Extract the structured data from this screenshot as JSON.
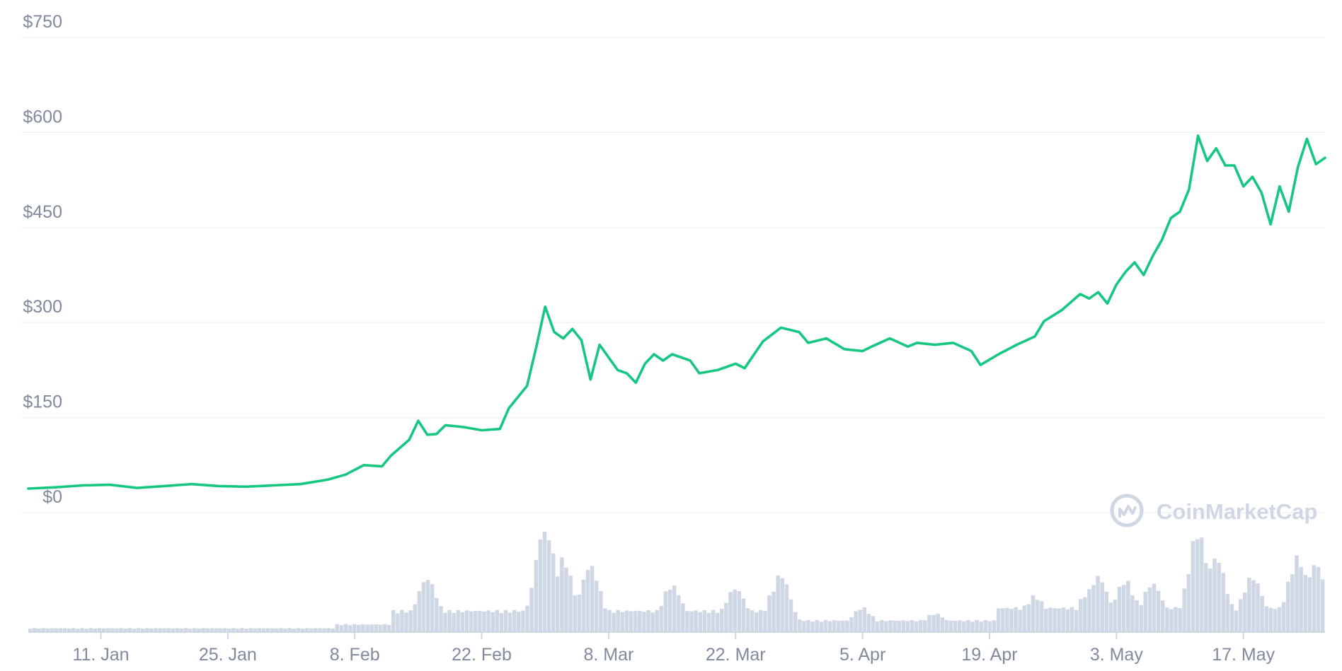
{
  "chart_data": {
    "type": "line",
    "title": "",
    "xlabel": "",
    "ylabel": "",
    "x_range": [
      "2021-01-03",
      "2021-05-26"
    ],
    "ylim": [
      0,
      750
    ],
    "y_ticks": [
      0,
      150,
      300,
      450,
      600,
      750
    ],
    "y_tick_labels": [
      "$0",
      "$150",
      "$300",
      "$450",
      "$600",
      "$750"
    ],
    "x_ticks": [
      "2021-01-11",
      "2021-01-25",
      "2021-02-08",
      "2021-02-22",
      "2021-03-08",
      "2021-03-22",
      "2021-04-05",
      "2021-04-19",
      "2021-05-03",
      "2021-05-17"
    ],
    "x_tick_labels": [
      "11. Jan",
      "25. Jan",
      "8. Feb",
      "22. Feb",
      "8. Mar",
      "22. Mar",
      "5. Apr",
      "19. Apr",
      "3. May",
      "17. May"
    ],
    "grid": "horizontal",
    "legend": "none",
    "series": [
      {
        "color": "#16c784",
        "points": [
          [
            "2021-01-03",
            38
          ],
          [
            "2021-01-06",
            40
          ],
          [
            "2021-01-09",
            43
          ],
          [
            "2021-01-12",
            44
          ],
          [
            "2021-01-15",
            39
          ],
          [
            "2021-01-18",
            42
          ],
          [
            "2021-01-21",
            45
          ],
          [
            "2021-01-24",
            42
          ],
          [
            "2021-01-27",
            41
          ],
          [
            "2021-01-30",
            43
          ],
          [
            "2021-02-02",
            45
          ],
          [
            "2021-02-05",
            52
          ],
          [
            "2021-02-07",
            60
          ],
          [
            "2021-02-09",
            75
          ],
          [
            "2021-02-11",
            73
          ],
          [
            "2021-02-12",
            90
          ],
          [
            "2021-02-14",
            115
          ],
          [
            "2021-02-15",
            145
          ],
          [
            "2021-02-16",
            123
          ],
          [
            "2021-02-17",
            124
          ],
          [
            "2021-02-18",
            138
          ],
          [
            "2021-02-20",
            135
          ],
          [
            "2021-02-22",
            130
          ],
          [
            "2021-02-24",
            132
          ],
          [
            "2021-02-25",
            165
          ],
          [
            "2021-02-27",
            200
          ],
          [
            "2021-02-28",
            260
          ],
          [
            "2021-03-01",
            325
          ],
          [
            "2021-03-02",
            285
          ],
          [
            "2021-03-03",
            275
          ],
          [
            "2021-03-04",
            290
          ],
          [
            "2021-03-05",
            272
          ],
          [
            "2021-03-06",
            210
          ],
          [
            "2021-03-07",
            265
          ],
          [
            "2021-03-08",
            245
          ],
          [
            "2021-03-09",
            225
          ],
          [
            "2021-03-10",
            220
          ],
          [
            "2021-03-11",
            205
          ],
          [
            "2021-03-12",
            235
          ],
          [
            "2021-03-13",
            250
          ],
          [
            "2021-03-14",
            240
          ],
          [
            "2021-03-15",
            250
          ],
          [
            "2021-03-17",
            240
          ],
          [
            "2021-03-18",
            220
          ],
          [
            "2021-03-20",
            225
          ],
          [
            "2021-03-22",
            235
          ],
          [
            "2021-03-23",
            228
          ],
          [
            "2021-03-25",
            270
          ],
          [
            "2021-03-27",
            292
          ],
          [
            "2021-03-29",
            285
          ],
          [
            "2021-03-30",
            268
          ],
          [
            "2021-04-01",
            275
          ],
          [
            "2021-04-03",
            258
          ],
          [
            "2021-04-05",
            255
          ],
          [
            "2021-04-06",
            262
          ],
          [
            "2021-04-08",
            275
          ],
          [
            "2021-04-10",
            262
          ],
          [
            "2021-04-11",
            268
          ],
          [
            "2021-04-13",
            265
          ],
          [
            "2021-04-15",
            268
          ],
          [
            "2021-04-17",
            255
          ],
          [
            "2021-04-18",
            233
          ],
          [
            "2021-04-20",
            250
          ],
          [
            "2021-04-22",
            265
          ],
          [
            "2021-04-24",
            278
          ],
          [
            "2021-04-25",
            302
          ],
          [
            "2021-04-27",
            320
          ],
          [
            "2021-04-29",
            345
          ],
          [
            "2021-04-30",
            338
          ],
          [
            "2021-05-01",
            348
          ],
          [
            "2021-05-02",
            330
          ],
          [
            "2021-05-03",
            360
          ],
          [
            "2021-05-04",
            380
          ],
          [
            "2021-05-05",
            395
          ],
          [
            "2021-05-06",
            375
          ],
          [
            "2021-05-07",
            405
          ],
          [
            "2021-05-08",
            430
          ],
          [
            "2021-05-09",
            465
          ],
          [
            "2021-05-10",
            475
          ],
          [
            "2021-05-11",
            510
          ],
          [
            "2021-05-12",
            595
          ],
          [
            "2021-05-13",
            555
          ],
          [
            "2021-05-14",
            575
          ],
          [
            "2021-05-15",
            548
          ],
          [
            "2021-05-16",
            548
          ],
          [
            "2021-05-17",
            515
          ],
          [
            "2021-05-18",
            530
          ],
          [
            "2021-05-19",
            505
          ],
          [
            "2021-05-20",
            455
          ],
          [
            "2021-05-21",
            515
          ],
          [
            "2021-05-22",
            475
          ],
          [
            "2021-05-23",
            545
          ],
          [
            "2021-05-24",
            590
          ],
          [
            "2021-05-25",
            550
          ],
          [
            "2021-05-26",
            560
          ]
        ]
      }
    ],
    "volume": {
      "color": "#cfd6e4",
      "comment": "relative trading volume (0-1) sampled across the full date range"
    },
    "annotations": [
      "CoinMarketCap"
    ]
  },
  "watermark": {
    "label": "CoinMarketCap",
    "icon": "coinmarketcap-logo-icon"
  }
}
